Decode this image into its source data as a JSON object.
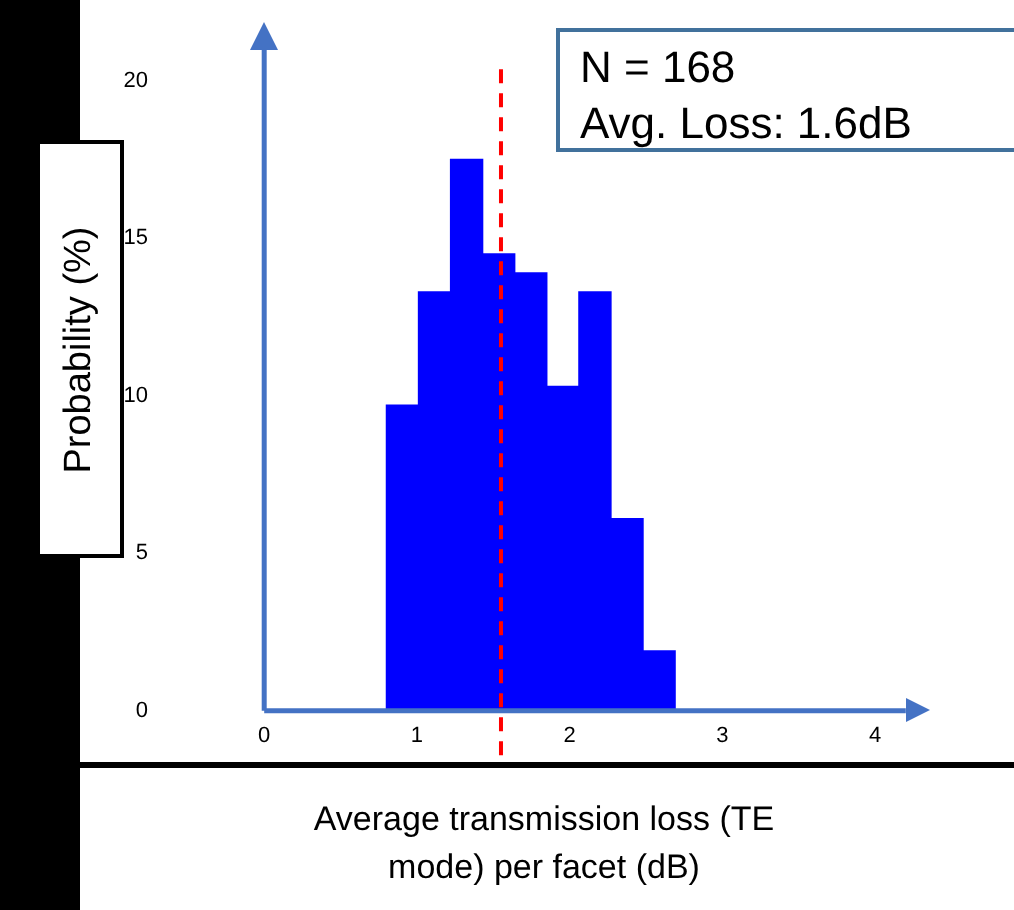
{
  "chart_data": {
    "type": "histogram",
    "xlabel": "Average transmission loss (TE mode) per facet (dB)",
    "ylabel": "Probability (%)",
    "bins": [
      0.8,
      1.01,
      1.22,
      1.43,
      1.64,
      1.85,
      2.06,
      2.27,
      2.48,
      2.69
    ],
    "values": [
      9.7,
      13.3,
      17.5,
      14.5,
      13.9,
      10.3,
      13.3,
      6.1,
      1.9
    ],
    "color": "#0000ff",
    "xlim": [
      0,
      4.2
    ],
    "xticks": [
      0,
      1,
      2,
      3,
      4
    ],
    "ylim": [
      0,
      21
    ],
    "yticks": [
      0,
      5,
      10,
      15,
      20
    ],
    "ref_lines": [
      {
        "axis": "x",
        "value": 1.55,
        "color": "#ff0000",
        "line_style": "dashed"
      }
    ],
    "annotations": [
      "N = 168",
      "Avg. Loss: 1.6dB"
    ],
    "grid": false,
    "legend": false
  }
}
